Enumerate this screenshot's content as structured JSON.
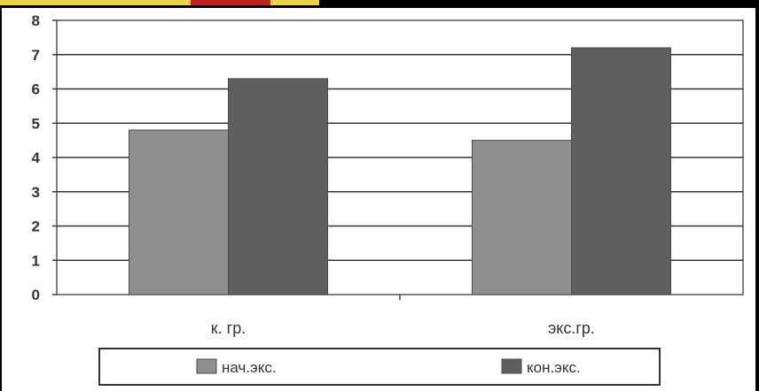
{
  "chart_data": {
    "type": "bar",
    "categories": [
      "к. гр.",
      "экс.гр."
    ],
    "series": [
      {
        "name": "нач.экс.",
        "values": [
          4.8,
          4.5
        ],
        "color": "#8f8f8f"
      },
      {
        "name": "кон.экс.",
        "values": [
          6.3,
          7.2
        ],
        "color": "#5f5f5f"
      }
    ],
    "ylim": [
      0,
      8
    ],
    "yticks": [
      0,
      1,
      2,
      3,
      4,
      5,
      6,
      7,
      8
    ],
    "grid": true,
    "legend_position": "bottom"
  }
}
